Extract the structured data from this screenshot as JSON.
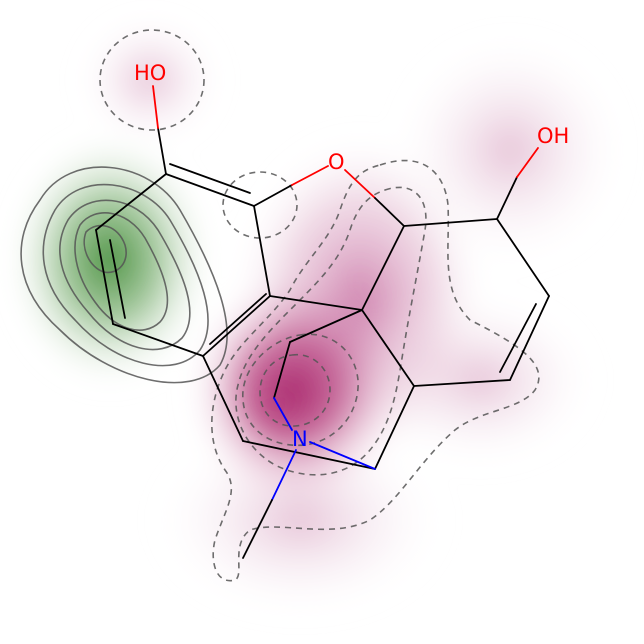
{
  "molecule": {
    "atoms": {
      "ho_top": {
        "text": "HO",
        "color": "#ff0000"
      },
      "ring_oxygen": {
        "text": "O",
        "color": "#ff0000"
      },
      "oh_right": {
        "text": "OH",
        "color": "#ff0000"
      },
      "nitrogen": {
        "text": "N",
        "color": "#0000ff"
      }
    },
    "bond_color": "#000000",
    "n_bond_color": "#0000ff",
    "o_bond_color": "#ff0000"
  },
  "map": {
    "positive_color": "#3f8f3a",
    "negative_color": "#a0005a",
    "contour_color": "#555555"
  }
}
